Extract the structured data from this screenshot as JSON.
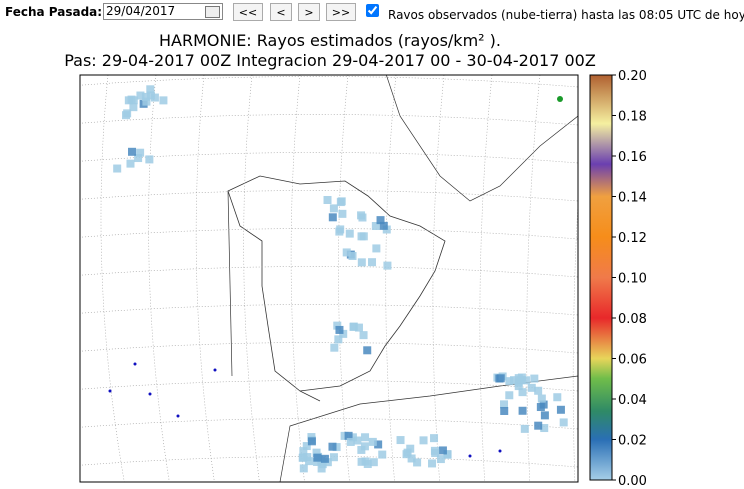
{
  "toolbar": {
    "date_label": "Fecha Pasada:",
    "date_value": "29/04/2017",
    "buttons": [
      "<<",
      "<",
      ">",
      ">>"
    ],
    "checkbox_label": "Ravos observados (nube-tierra) hasta las 08:05 UTC de hoy"
  },
  "map": {
    "title": "HARMONIE: Rayos estimados  (rayos/km² ).",
    "subtitle": "Pas: 29-04-2017 00Z Integracion 29-04-2017 00 - 30-04-2017 00Z",
    "colorbar_labels": [
      "0.00",
      "0.02",
      "0.04",
      "0.06",
      "0.08",
      "0.10",
      "0.12",
      "0.14",
      "0.16",
      "0.18",
      "0.20"
    ]
  }
}
